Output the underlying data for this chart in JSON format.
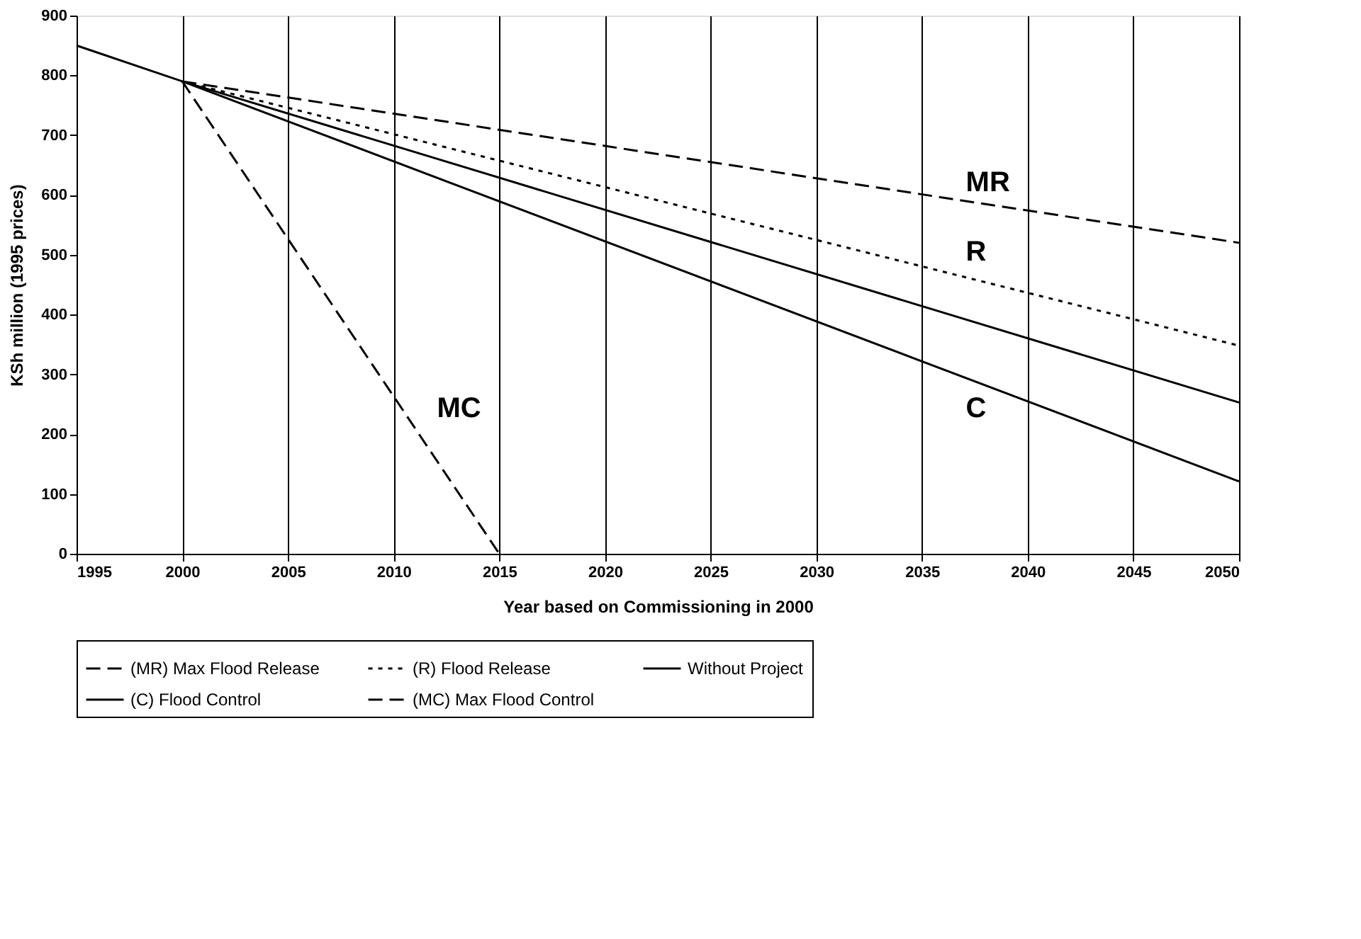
{
  "chart_data": {
    "type": "line",
    "xlabel": "Year based on Commissioning in 2000",
    "ylabel": "KSh million (1995 prices)",
    "xlim": [
      1995,
      2050
    ],
    "xticks": [
      1995,
      2000,
      2005,
      2010,
      2015,
      2020,
      2025,
      2030,
      2035,
      2040,
      2045,
      2050
    ],
    "ylim": [
      0,
      900
    ],
    "yticks": [
      0,
      100,
      200,
      300,
      400,
      500,
      600,
      700,
      800,
      900
    ],
    "grid": "x",
    "legend": "bottom",
    "marker": "none",
    "series": [
      {
        "name": "(MR) Max Flood Release",
        "color": "#000000",
        "line_style": "dashed",
        "x": [
          2000,
          2050
        ],
        "values": [
          790,
          520
        ]
      },
      {
        "name": "(R) Flood Release",
        "color": "#000000",
        "line_style": "dotted",
        "x": [
          2000,
          2050
        ],
        "values": [
          790,
          348
        ]
      },
      {
        "name": "Without Project",
        "color": "#000000",
        "line_style": "solid",
        "x": [
          1995,
          2000,
          2050
        ],
        "values": [
          850,
          790,
          253
        ]
      },
      {
        "name": "(C) Flood Control",
        "color": "#000000",
        "line_style": "solid",
        "x": [
          2000,
          2050
        ],
        "values": [
          790,
          121
        ]
      },
      {
        "name": "(MC) Max Flood Control",
        "color": "#000000",
        "line_style": "dashed",
        "x": [
          2000,
          2015
        ],
        "values": [
          790,
          0
        ]
      }
    ],
    "annotations": [
      "MR",
      "R",
      "C",
      "MC"
    ]
  }
}
